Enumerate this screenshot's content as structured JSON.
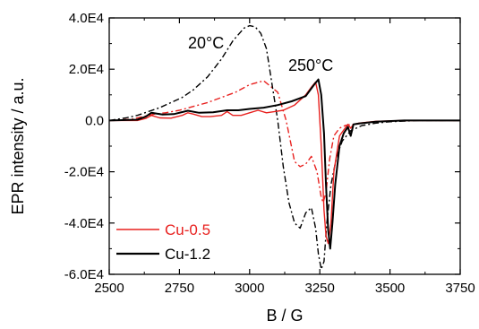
{
  "chart_data": {
    "type": "line",
    "title": "",
    "xlabel": "B / G",
    "ylabel": "EPR intensity / a.u.",
    "xlim": [
      2500,
      3750
    ],
    "ylim": [
      -60000,
      40000
    ],
    "x_ticks": [
      2500,
      2750,
      3000,
      3250,
      3500,
      3750
    ],
    "y_ticks": [
      -60000,
      -40000,
      -20000,
      0,
      20000,
      40000
    ],
    "x_tick_labels": [
      "2500",
      "2750",
      "3000",
      "3250",
      "3500",
      "3750"
    ],
    "y_tick_labels": [
      "-6.0E4",
      "-4.0E4",
      "-2.0E4",
      "0.0",
      "2.0E4",
      "4.0E4"
    ],
    "annotations": [
      {
        "text": "20°C",
        "x": 2960,
        "y": 31000
      },
      {
        "text": "250°C",
        "x": 3185,
        "y": 20000
      }
    ],
    "legend": {
      "placement": "bottom-left",
      "entries": [
        {
          "name": "Cu-0.5",
          "color": "#e8211f"
        },
        {
          "name": "Cu-1.2",
          "color": "#000000"
        }
      ]
    },
    "grid": false,
    "series": [
      {
        "name": "Cu-0.5",
        "temperature": "250°C",
        "color": "#e8211f",
        "style": "solid",
        "x": [
          2500,
          2600,
          2630,
          2650,
          2680,
          2720,
          2760,
          2780,
          2800,
          2830,
          2860,
          2900,
          2920,
          2940,
          2970,
          3000,
          3030,
          3060,
          3090,
          3120,
          3160,
          3200,
          3220,
          3235,
          3245,
          3255,
          3265,
          3272,
          3280,
          3290,
          3300,
          3320,
          3340,
          3350,
          3360,
          3370,
          3390,
          3450,
          3550,
          3650,
          3750
        ],
        "y": [
          0,
          0,
          800,
          2000,
          1000,
          900,
          2000,
          3000,
          2500,
          1500,
          1500,
          2000,
          3500,
          2000,
          2000,
          3000,
          4000,
          3000,
          3500,
          4000,
          6000,
          10000,
          13000,
          15000,
          10000,
          -10000,
          -35000,
          -45000,
          -48000,
          -40000,
          -20000,
          -6000,
          -3000,
          -1500,
          -3000,
          -1500,
          -1000,
          -300,
          0,
          0,
          0
        ]
      },
      {
        "name": "Cu-1.2",
        "temperature": "250°C",
        "color": "#000000",
        "style": "solid",
        "x": [
          2500,
          2600,
          2630,
          2650,
          2690,
          2730,
          2780,
          2820,
          2870,
          2920,
          2960,
          3000,
          3050,
          3100,
          3150,
          3200,
          3230,
          3245,
          3255,
          3265,
          3272,
          3280,
          3287,
          3295,
          3305,
          3320,
          3335,
          3350,
          3360,
          3370,
          3390,
          3450,
          3550,
          3650,
          3750
        ],
        "y": [
          0,
          300,
          1500,
          3000,
          2300,
          2500,
          3800,
          3000,
          3200,
          4000,
          4000,
          4500,
          5000,
          6000,
          7500,
          9500,
          14000,
          16000,
          10000,
          -5000,
          -25000,
          -43000,
          -50000,
          -40000,
          -25000,
          -10000,
          -5000,
          -2500,
          -6000,
          -1500,
          -1200,
          -500,
          0,
          0,
          0
        ]
      },
      {
        "name": "Cu-0.5 (20°C)",
        "temperature": "20°C",
        "color": "#e8211f",
        "style": "dashdot",
        "x": [
          2500,
          2580,
          2620,
          2660,
          2700,
          2750,
          2800,
          2850,
          2900,
          2950,
          3000,
          3050,
          3100,
          3130,
          3160,
          3180,
          3200,
          3220,
          3240,
          3255,
          3262,
          3272,
          3285,
          3300,
          3320,
          3340,
          3360,
          3380,
          3400,
          3450,
          3550,
          3650,
          3750
        ],
        "y": [
          0,
          500,
          1500,
          2500,
          3000,
          4000,
          5500,
          7000,
          9000,
          11000,
          14000,
          15500,
          11000,
          0,
          -16000,
          -18000,
          -17000,
          -14000,
          -20000,
          -30000,
          -32000,
          -28000,
          -15000,
          -6000,
          -3000,
          -2000,
          -1500,
          -1500,
          -1000,
          -500,
          0,
          0,
          0
        ]
      },
      {
        "name": "Cu-1.2 (20°C)",
        "temperature": "20°C",
        "color": "#000000",
        "style": "dashdot",
        "x": [
          2500,
          2560,
          2600,
          2640,
          2680,
          2720,
          2760,
          2800,
          2850,
          2900,
          2940,
          2980,
          3000,
          3020,
          3040,
          3060,
          3080,
          3100,
          3120,
          3140,
          3160,
          3180,
          3200,
          3220,
          3235,
          3245,
          3255,
          3265,
          3275,
          3290,
          3310,
          3330,
          3360,
          3400,
          3450,
          3500,
          3600,
          3700,
          3750
        ],
        "y": [
          0,
          1000,
          2000,
          3500,
          5000,
          7000,
          9000,
          12000,
          17000,
          24000,
          31000,
          36000,
          37000,
          36500,
          34000,
          28000,
          14000,
          0,
          -18000,
          -32000,
          -40000,
          -42000,
          -36000,
          -34000,
          -42000,
          -52000,
          -58000,
          -55000,
          -40000,
          -25000,
          -14000,
          -8000,
          -4000,
          -2000,
          -1000,
          -500,
          0,
          0,
          0
        ]
      }
    ]
  }
}
